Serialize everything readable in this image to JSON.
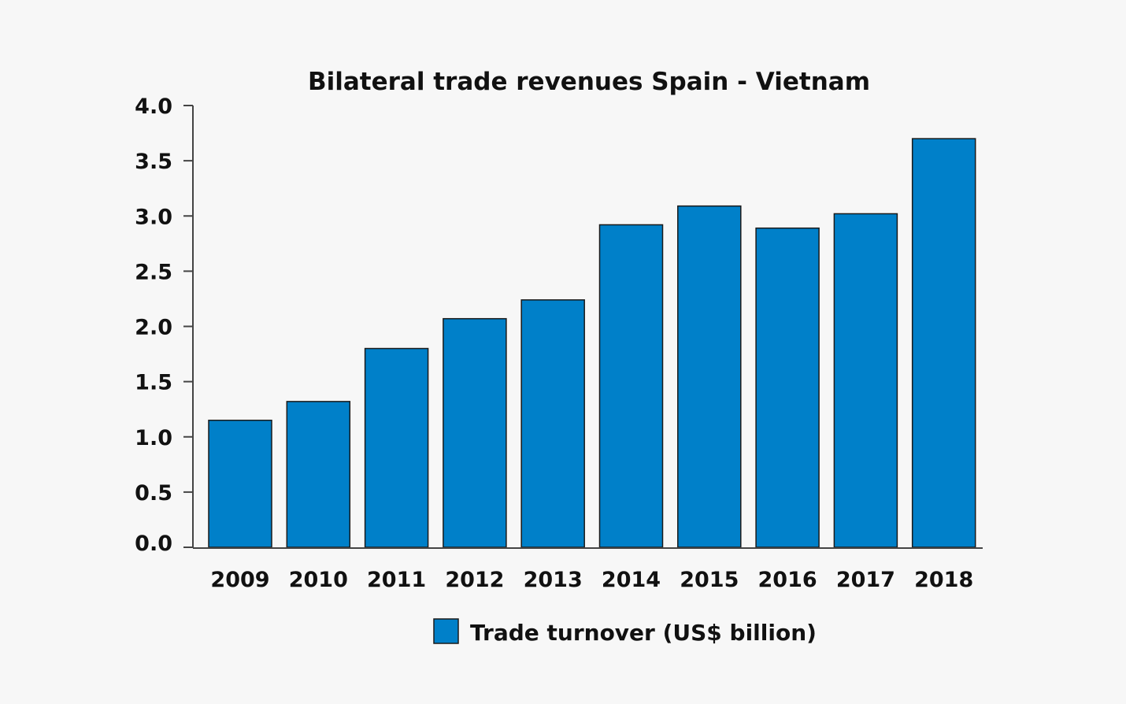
{
  "chart_data": {
    "type": "bar",
    "title": "Bilateral trade revenues Spain - Vietnam",
    "xlabel": "",
    "ylabel": "",
    "categories": [
      "2009",
      "2010",
      "2011",
      "2012",
      "2013",
      "2014",
      "2015",
      "2016",
      "2017",
      "2018"
    ],
    "series": [
      {
        "name": "Trade turnover (US$ billion)",
        "values": [
          1.15,
          1.32,
          1.8,
          2.07,
          2.24,
          2.92,
          3.09,
          2.89,
          3.02,
          3.7
        ],
        "color": "#0080c9"
      }
    ],
    "ylim": [
      0,
      4.0
    ],
    "yticks": [
      "0.0",
      "0.5",
      "1.0",
      "1.5",
      "2.0",
      "2.5",
      "3.0",
      "3.5",
      "4.0"
    ],
    "grid": false,
    "legend_position": "bottom-center"
  }
}
